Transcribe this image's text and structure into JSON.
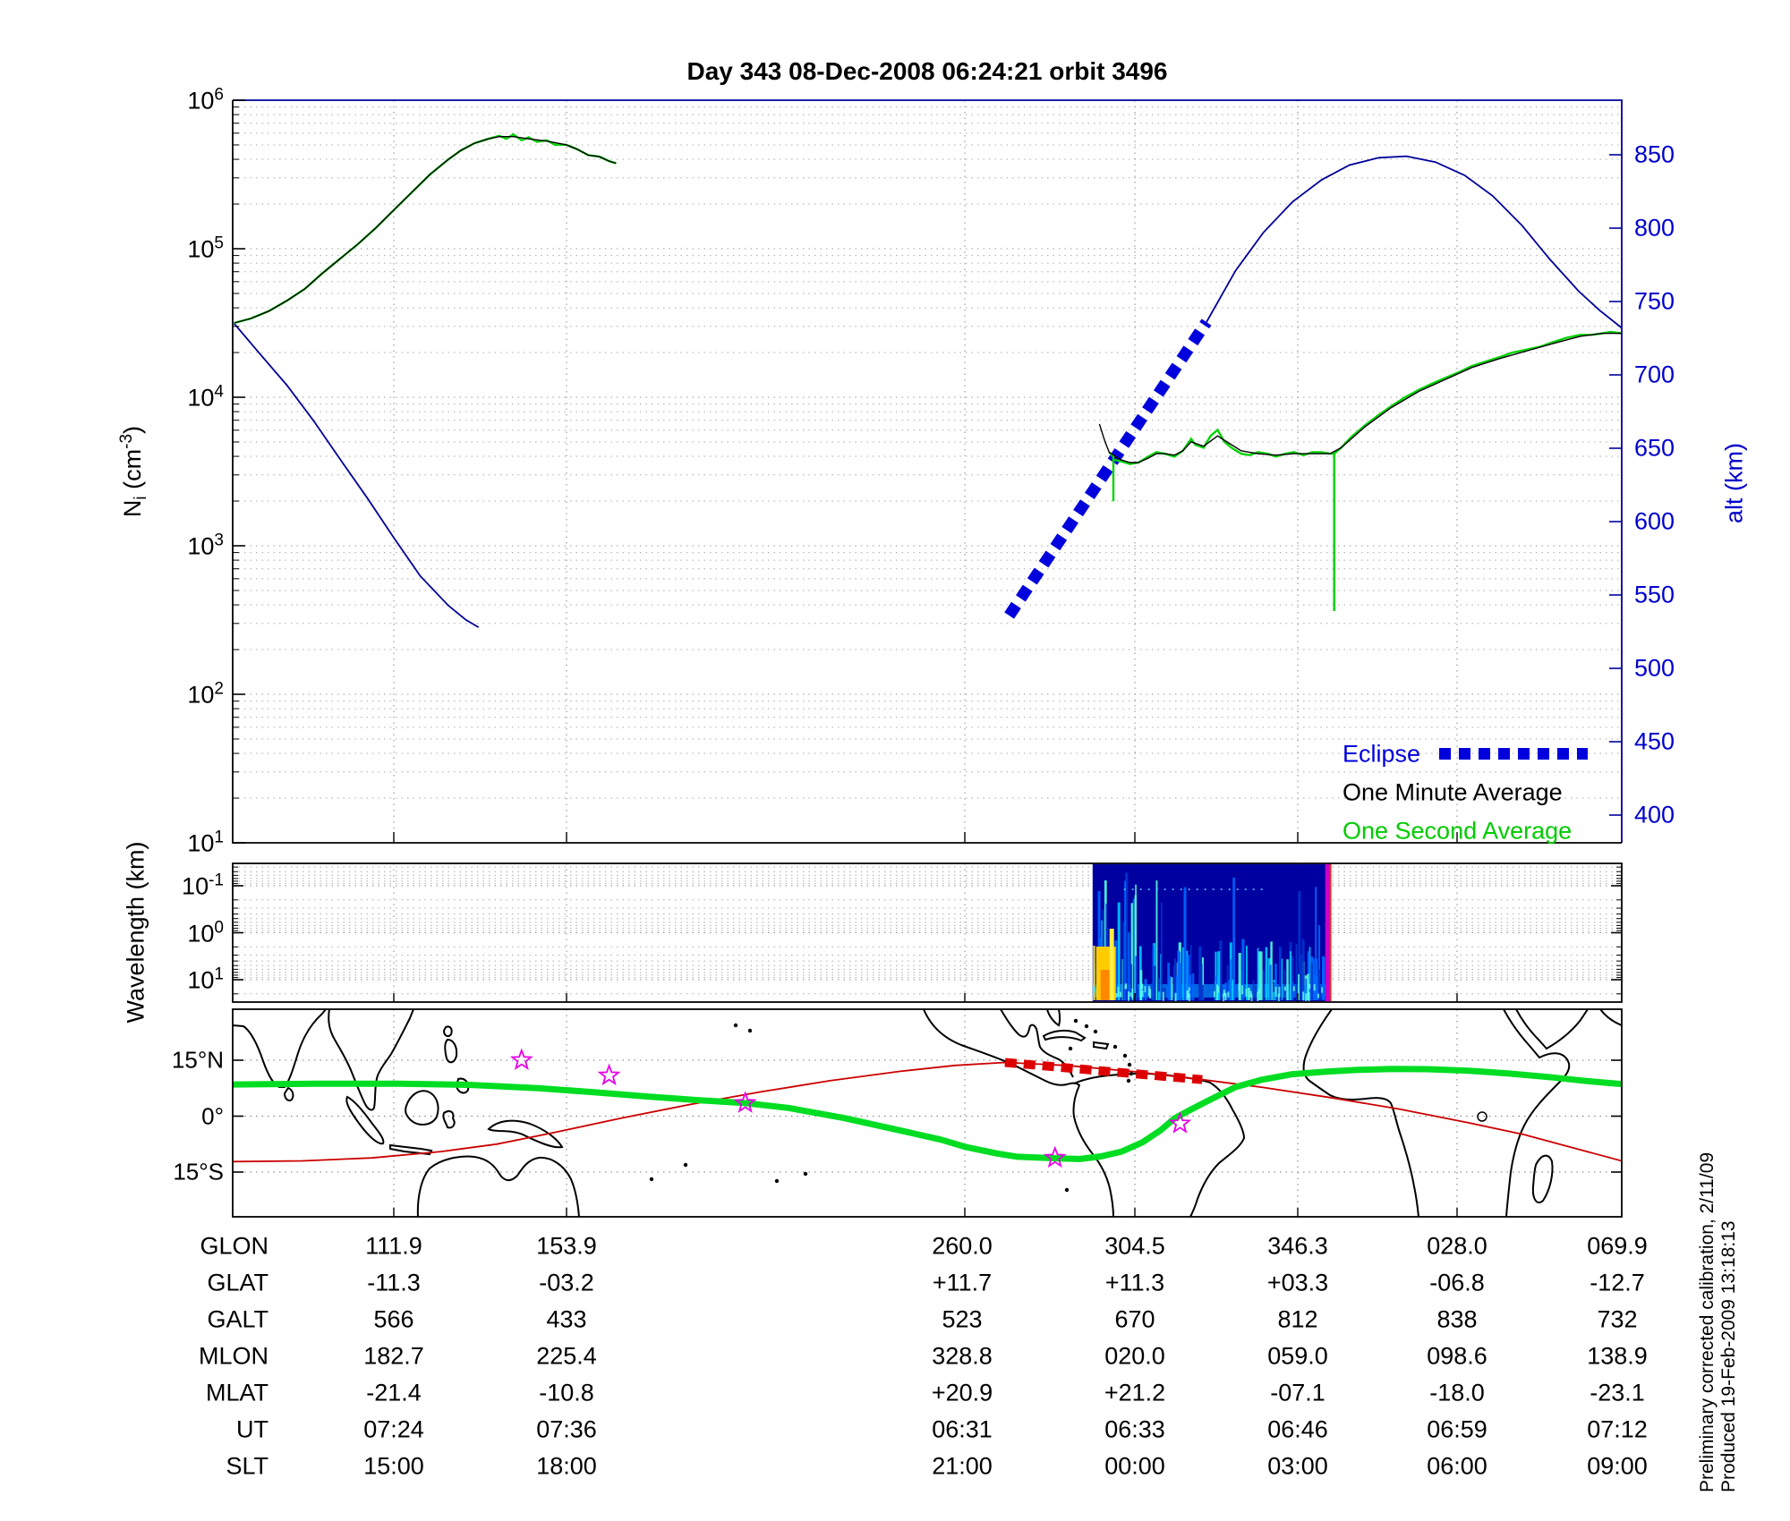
{
  "title": "Day 343  08-Dec-2008 06:24:21   orbit 3496",
  "colors": {
    "one_second_green": "#00d400",
    "one_minute_black": "#000000",
    "altitude_blue": "#000099",
    "eclipse_blue": "#0000dd",
    "map_track_green": "#00dd22",
    "mag_equator_red": "#cc0000",
    "map_eclipse_red": "#dd0000",
    "star_magenta": "#e800e8",
    "alt_axis_blue": "#0000cc"
  },
  "axes": {
    "ni": {
      "pre": "N",
      "sub": "i",
      "mid": " (cm",
      "sup": "-3",
      "post": ")",
      "tick_exponents": [
        "6",
        "5",
        "4",
        "3",
        "2",
        "1"
      ]
    },
    "alt": {
      "label": "alt (km)",
      "ticks": [
        "850",
        "800",
        "750",
        "700",
        "650",
        "600",
        "550",
        "500",
        "450",
        "400"
      ]
    },
    "wavelength": {
      "label": "Wavelength (km)",
      "tick_exponents": [
        "-1",
        "0",
        "1"
      ]
    },
    "map": {
      "lat_ticks": [
        "15°N",
        "0°",
        "15°S"
      ]
    }
  },
  "legend": {
    "eclipse_label": "Eclipse",
    "one_minute_label": "One Minute Average",
    "one_second_label": "One Second Average"
  },
  "table": {
    "rows": [
      {
        "label": "GLON",
        "values": [
          "111.9",
          "153.9",
          "260.0",
          "304.5",
          "346.3",
          "028.0",
          "069.9"
        ]
      },
      {
        "label": "GLAT",
        "values": [
          "-11.3",
          "-03.2",
          "+11.7",
          "+11.3",
          "+03.3",
          "-06.8",
          "-12.7"
        ]
      },
      {
        "label": "GALT",
        "values": [
          "566",
          "433",
          "523",
          "670",
          "812",
          "838",
          "732"
        ]
      },
      {
        "label": "MLON",
        "values": [
          "182.7",
          "225.4",
          "328.8",
          "020.0",
          "059.0",
          "098.6",
          "138.9"
        ]
      },
      {
        "label": "MLAT",
        "values": [
          "-21.4",
          "-10.8",
          "+20.9",
          "+21.2",
          "-07.1",
          "-18.0",
          "-23.1"
        ]
      },
      {
        "label": "UT",
        "values": [
          "07:24",
          "07:36",
          "06:31",
          "06:33",
          "06:46",
          "06:59",
          "07:12"
        ]
      },
      {
        "label": "SLT",
        "values": [
          "15:00",
          "18:00",
          "21:00",
          "00:00",
          "03:00",
          "06:00",
          "09:00"
        ]
      }
    ]
  },
  "footer": {
    "line1": "Preliminary corrected calibration, 2/11/09",
    "line2": "Produced 19-Feb-2009 13:18:13"
  },
  "chart_data": [
    {
      "id": "ni_one_second",
      "type": "line",
      "panel": "top",
      "yaxis": "log_ni",
      "name": "One Second Average ion density",
      "units": "log10(cm^-3)",
      "segments": [
        [
          [
            0.001,
            4.5
          ],
          [
            0.013,
            4.53
          ],
          [
            0.026,
            4.58
          ],
          [
            0.039,
            4.65
          ],
          [
            0.052,
            4.73
          ],
          [
            0.064,
            4.83
          ],
          [
            0.077,
            4.93
          ],
          [
            0.09,
            5.03
          ],
          [
            0.103,
            5.14
          ],
          [
            0.116,
            5.26
          ],
          [
            0.129,
            5.38
          ],
          [
            0.142,
            5.5
          ],
          [
            0.155,
            5.6
          ],
          [
            0.164,
            5.66
          ],
          [
            0.174,
            5.71
          ],
          [
            0.184,
            5.74
          ],
          [
            0.192,
            5.76
          ],
          [
            0.197,
            5.74
          ],
          [
            0.202,
            5.77
          ],
          [
            0.208,
            5.73
          ],
          [
            0.213,
            5.75
          ],
          [
            0.219,
            5.72
          ],
          [
            0.226,
            5.73
          ],
          [
            0.232,
            5.7
          ],
          [
            0.24,
            5.7
          ],
          [
            0.248,
            5.67
          ],
          [
            0.256,
            5.63
          ],
          [
            0.264,
            5.62
          ],
          [
            0.271,
            5.59
          ],
          [
            0.276,
            5.575
          ]
        ],
        [
          [
            0.631,
            3.63
          ],
          [
            0.634,
            3.6
          ],
          [
            0.634,
            3.3
          ],
          [
            0.634,
            3.58
          ],
          [
            0.639,
            3.57
          ],
          [
            0.646,
            3.55
          ],
          [
            0.652,
            3.56
          ],
          [
            0.659,
            3.6
          ],
          [
            0.665,
            3.63
          ],
          [
            0.671,
            3.62
          ],
          [
            0.678,
            3.6
          ],
          [
            0.684,
            3.64
          ],
          [
            0.69,
            3.72
          ],
          [
            0.693,
            3.68
          ],
          [
            0.699,
            3.66
          ],
          [
            0.704,
            3.74
          ],
          [
            0.709,
            3.78
          ],
          [
            0.714,
            3.7
          ],
          [
            0.719,
            3.66
          ],
          [
            0.726,
            3.62
          ],
          [
            0.732,
            3.61
          ],
          [
            0.738,
            3.63
          ],
          [
            0.745,
            3.62
          ],
          [
            0.751,
            3.6
          ],
          [
            0.758,
            3.62
          ],
          [
            0.764,
            3.63
          ],
          [
            0.771,
            3.61
          ],
          [
            0.777,
            3.63
          ],
          [
            0.784,
            3.63
          ],
          [
            0.79,
            3.62
          ],
          [
            0.793,
            3.62
          ],
          [
            0.793,
            2.56
          ],
          [
            0.793,
            3.62
          ],
          [
            0.798,
            3.66
          ],
          [
            0.805,
            3.73
          ],
          [
            0.815,
            3.81
          ],
          [
            0.825,
            3.88
          ],
          [
            0.834,
            3.94
          ],
          [
            0.844,
            4.0
          ],
          [
            0.854,
            4.05
          ],
          [
            0.863,
            4.09
          ],
          [
            0.873,
            4.13
          ],
          [
            0.883,
            4.17
          ],
          [
            0.892,
            4.21
          ],
          [
            0.902,
            4.24
          ],
          [
            0.912,
            4.27
          ],
          [
            0.921,
            4.3
          ],
          [
            0.931,
            4.32
          ],
          [
            0.941,
            4.34
          ],
          [
            0.95,
            4.37
          ],
          [
            0.96,
            4.4
          ],
          [
            0.97,
            4.42
          ],
          [
            0.978,
            4.42
          ],
          [
            0.986,
            4.43
          ],
          [
            0.992,
            4.44
          ],
          [
            1.0,
            4.43
          ]
        ]
      ]
    },
    {
      "id": "ni_one_minute",
      "type": "line",
      "panel": "top",
      "yaxis": "log_ni",
      "name": "One Minute Average ion density",
      "units": "log10(cm^-3)",
      "segments": [
        [
          [
            0.001,
            4.5
          ],
          [
            0.013,
            4.53
          ],
          [
            0.026,
            4.58
          ],
          [
            0.039,
            4.65
          ],
          [
            0.052,
            4.73
          ],
          [
            0.064,
            4.83
          ],
          [
            0.077,
            4.93
          ],
          [
            0.09,
            5.03
          ],
          [
            0.103,
            5.14
          ],
          [
            0.116,
            5.26
          ],
          [
            0.129,
            5.38
          ],
          [
            0.142,
            5.5
          ],
          [
            0.155,
            5.6
          ],
          [
            0.164,
            5.66
          ],
          [
            0.174,
            5.71
          ],
          [
            0.184,
            5.74
          ],
          [
            0.192,
            5.755
          ],
          [
            0.202,
            5.755
          ],
          [
            0.213,
            5.74
          ],
          [
            0.226,
            5.725
          ],
          [
            0.24,
            5.7
          ],
          [
            0.248,
            5.67
          ],
          [
            0.256,
            5.63
          ],
          [
            0.264,
            5.62
          ],
          [
            0.271,
            5.59
          ],
          [
            0.276,
            5.575
          ]
        ],
        [
          [
            0.624,
            3.82
          ],
          [
            0.628,
            3.7
          ],
          [
            0.631,
            3.63
          ],
          [
            0.639,
            3.58
          ],
          [
            0.646,
            3.56
          ],
          [
            0.652,
            3.56
          ],
          [
            0.659,
            3.59
          ],
          [
            0.665,
            3.62
          ],
          [
            0.671,
            3.62
          ],
          [
            0.678,
            3.61
          ],
          [
            0.684,
            3.64
          ],
          [
            0.69,
            3.7
          ],
          [
            0.699,
            3.67
          ],
          [
            0.709,
            3.74
          ],
          [
            0.714,
            3.71
          ],
          [
            0.726,
            3.64
          ],
          [
            0.738,
            3.62
          ],
          [
            0.751,
            3.61
          ],
          [
            0.764,
            3.62
          ],
          [
            0.777,
            3.62
          ],
          [
            0.79,
            3.62
          ],
          [
            0.798,
            3.66
          ],
          [
            0.815,
            3.8
          ],
          [
            0.834,
            3.93
          ],
          [
            0.854,
            4.04
          ],
          [
            0.873,
            4.12
          ],
          [
            0.892,
            4.2
          ],
          [
            0.912,
            4.26
          ],
          [
            0.931,
            4.31
          ],
          [
            0.95,
            4.36
          ],
          [
            0.97,
            4.41
          ],
          [
            0.986,
            4.43
          ],
          [
            1.0,
            4.43
          ]
        ]
      ]
    },
    {
      "id": "altitude",
      "type": "line",
      "panel": "top",
      "yaxis": "alt_km",
      "name": "Satellite altitude",
      "units": "km",
      "segments": [
        [
          [
            0.001,
            735
          ],
          [
            0.019,
            715
          ],
          [
            0.039,
            693
          ],
          [
            0.058,
            669
          ],
          [
            0.077,
            643
          ],
          [
            0.097,
            616
          ],
          [
            0.116,
            589
          ],
          [
            0.135,
            563
          ],
          [
            0.155,
            543
          ],
          [
            0.168,
            533
          ],
          [
            0.177,
            528
          ]
        ],
        [
          [
            0.701,
            736
          ],
          [
            0.722,
            771
          ],
          [
            0.742,
            797
          ],
          [
            0.763,
            818
          ],
          [
            0.784,
            833
          ],
          [
            0.804,
            843
          ],
          [
            0.825,
            848
          ],
          [
            0.845,
            849
          ],
          [
            0.866,
            845
          ],
          [
            0.887,
            836
          ],
          [
            0.907,
            822
          ],
          [
            0.928,
            802
          ],
          [
            0.948,
            779
          ],
          [
            0.969,
            757
          ],
          [
            0.984,
            744
          ],
          [
            1.0,
            732
          ]
        ]
      ]
    },
    {
      "id": "eclipse_top",
      "type": "dashed_line",
      "panel": "top",
      "yaxis": "alt_km",
      "name": "Eclipse interval (altitude trace)",
      "units": "km",
      "segments": [
        [
          [
            0.559,
            536
          ],
          [
            0.701,
            736
          ]
        ]
      ]
    },
    {
      "id": "spectrogram",
      "type": "heatmap",
      "panel": "middle",
      "name": "Wavelength spectrogram (active region)",
      "x_start_frac": 0.619,
      "x_end_frac": 0.791,
      "ylog_range": [
        -1.5,
        1.5
      ],
      "y_axis_inverted": true
    },
    {
      "id": "ground_track",
      "type": "line",
      "panel": "map",
      "yaxis": "lat_deg",
      "name": "Satellite ground track",
      "units": "deg latitude",
      "segments": [
        [
          [
            0,
            8.5
          ],
          [
            0.06,
            8.7
          ],
          [
            0.12,
            8.7
          ],
          [
            0.17,
            8.4
          ],
          [
            0.22,
            7.5
          ],
          [
            0.26,
            6.4
          ],
          [
            0.3,
            5.2
          ],
          [
            0.335,
            4.3
          ],
          [
            0.369,
            3.5
          ],
          [
            0.4,
            2.2
          ],
          [
            0.44,
            -0.5
          ],
          [
            0.48,
            -3.8
          ],
          [
            0.51,
            -6.3
          ],
          [
            0.528,
            -8.3
          ],
          [
            0.55,
            -10.0
          ],
          [
            0.565,
            -10.9
          ],
          [
            0.593,
            -11.3
          ],
          [
            0.61,
            -11.5
          ],
          [
            0.625,
            -10.8
          ],
          [
            0.64,
            -9.5
          ],
          [
            0.655,
            -7.0
          ],
          [
            0.668,
            -3.8
          ],
          [
            0.678,
            -0.6
          ],
          [
            0.69,
            1.8
          ],
          [
            0.703,
            4.3
          ],
          [
            0.722,
            7.8
          ],
          [
            0.74,
            9.7
          ],
          [
            0.762,
            11.2
          ],
          [
            0.786,
            11.9
          ],
          [
            0.81,
            12.4
          ],
          [
            0.835,
            12.65
          ],
          [
            0.86,
            12.6
          ],
          [
            0.89,
            12.2
          ],
          [
            0.92,
            11.4
          ],
          [
            0.95,
            10.4
          ],
          [
            0.975,
            9.4
          ],
          [
            1,
            8.6
          ]
        ]
      ]
    },
    {
      "id": "mag_equator",
      "type": "line",
      "panel": "map",
      "yaxis": "lat_deg",
      "name": "Magnetic equator",
      "units": "deg latitude",
      "segments": [
        [
          [
            0,
            -12.2
          ],
          [
            0.05,
            -12.0
          ],
          [
            0.1,
            -11.2
          ],
          [
            0.15,
            -9.5
          ],
          [
            0.19,
            -7.5
          ],
          [
            0.23,
            -4.5
          ],
          [
            0.28,
            -0.5
          ],
          [
            0.33,
            3.2
          ],
          [
            0.38,
            6.5
          ],
          [
            0.43,
            9.5
          ],
          [
            0.48,
            12.0
          ],
          [
            0.52,
            13.6
          ],
          [
            0.556,
            14.4
          ],
          [
            0.6,
            13.6
          ],
          [
            0.65,
            11.9
          ],
          [
            0.698,
            9.8
          ],
          [
            0.74,
            7.8
          ],
          [
            0.79,
            5.0
          ],
          [
            0.84,
            1.9
          ],
          [
            0.89,
            -1.8
          ],
          [
            0.93,
            -5.0
          ],
          [
            0.97,
            -9.0
          ],
          [
            1,
            -12.0
          ]
        ]
      ]
    },
    {
      "id": "eclipse_map",
      "type": "dashed_line",
      "panel": "map",
      "yaxis": "lat_deg",
      "name": "Eclipse interval (ground track)",
      "units": "deg latitude",
      "segments": [
        [
          [
            0.556,
            14.4
          ],
          [
            0.698,
            9.8
          ]
        ]
      ]
    },
    {
      "id": "event_stars",
      "type": "marker",
      "panel": "map",
      "yaxis": "lat_deg",
      "name": "Event markers",
      "points": [
        [
          0.208,
          15.0
        ],
        [
          0.271,
          10.9
        ],
        [
          0.369,
          3.5
        ],
        [
          0.592,
          -11.2
        ],
        [
          0.682,
          -2.0
        ]
      ]
    }
  ]
}
